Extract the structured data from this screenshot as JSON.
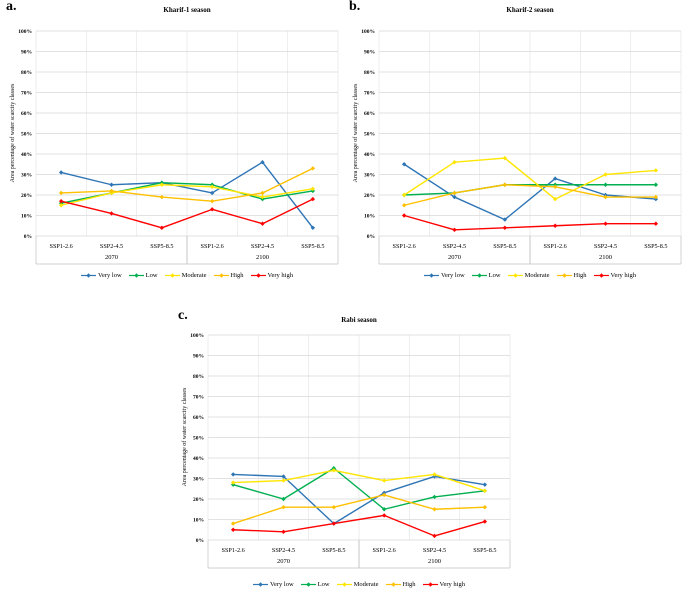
{
  "figure": {
    "background": "#FFFFFF"
  },
  "palette": {
    "very_low": "#2E75B6",
    "low": "#00B050",
    "moderate": "#FFE600",
    "high": "#FFC000",
    "very_high": "#FF0000",
    "gridline_h": "#D9D9D9",
    "gridline_v": "#E7E7E7",
    "axis_line": "#C0C0C0",
    "text": "#000000"
  },
  "chart_data": [
    {
      "panel": "a.",
      "type": "line",
      "title": "Kharif-1 season",
      "ylabel": "Area percentage of water scarcity classes",
      "ylim": [
        0,
        100
      ],
      "ytick_step": 10,
      "yticks": [
        "0%",
        "10%",
        "20%",
        "30%",
        "40%",
        "50%",
        "60%",
        "70%",
        "80%",
        "90%",
        "100%"
      ],
      "categories": [
        "SSP1-2.6",
        "SSP2-4.5",
        "SSP5-8.5",
        "SSP1-2.6",
        "SSP2-4.5",
        "SSP5-8.5"
      ],
      "groups": [
        {
          "label": "2070",
          "span": [
            0,
            2
          ]
        },
        {
          "label": "2100",
          "span": [
            3,
            5
          ]
        }
      ],
      "grid": true,
      "legend_position": "bottom",
      "series": [
        {
          "name": "Very low",
          "color_key": "very_low",
          "values": [
            31,
            25,
            26,
            21,
            36,
            4
          ]
        },
        {
          "name": "Low",
          "color_key": "low",
          "values": [
            16,
            21,
            26,
            25,
            18,
            22
          ]
        },
        {
          "name": "Moderate",
          "color_key": "moderate",
          "values": [
            15,
            21,
            25,
            24,
            19,
            23
          ]
        },
        {
          "name": "High",
          "color_key": "high",
          "values": [
            21,
            22,
            19,
            17,
            21,
            33
          ]
        },
        {
          "name": "Very high",
          "color_key": "very_high",
          "values": [
            17,
            11,
            4,
            13,
            6,
            18
          ]
        }
      ]
    },
    {
      "panel": "b.",
      "type": "line",
      "title": "Kharif-2 season",
      "ylabel": "Area percentage of water scarcity classes",
      "ylim": [
        0,
        100
      ],
      "ytick_step": 10,
      "yticks": [
        "0%",
        "10%",
        "20%",
        "30%",
        "40%",
        "50%",
        "60%",
        "70%",
        "80%",
        "90%",
        "100%"
      ],
      "categories": [
        "SSP1-2.6",
        "SSP2-4.5",
        "SSP5-8.5",
        "SSP1-2.6",
        "SSP2-4.5",
        "SSP5-8.5"
      ],
      "groups": [
        {
          "label": "2070",
          "span": [
            0,
            2
          ]
        },
        {
          "label": "2100",
          "span": [
            3,
            5
          ]
        }
      ],
      "grid": true,
      "legend_position": "bottom",
      "series": [
        {
          "name": "Very low",
          "color_key": "very_low",
          "values": [
            35,
            19,
            8,
            28,
            20,
            18
          ]
        },
        {
          "name": "Low",
          "color_key": "low",
          "values": [
            20,
            21,
            25,
            25,
            25,
            25
          ]
        },
        {
          "name": "Moderate",
          "color_key": "moderate",
          "values": [
            20,
            36,
            38,
            18,
            30,
            32
          ]
        },
        {
          "name": "High",
          "color_key": "high",
          "values": [
            15,
            21,
            25,
            24,
            19,
            19
          ]
        },
        {
          "name": "Very high",
          "color_key": "very_high",
          "values": [
            10,
            3,
            4,
            5,
            6,
            6
          ]
        }
      ]
    },
    {
      "panel": "c.",
      "type": "line",
      "title": "Rabi season",
      "ylabel": "Area percentage of water scarcity classes",
      "ylim": [
        0,
        100
      ],
      "ytick_step": 10,
      "yticks": [
        "0%",
        "10%",
        "20%",
        "30%",
        "40%",
        "50%",
        "60%",
        "70%",
        "80%",
        "90%",
        "100%"
      ],
      "categories": [
        "SSP1-2.6",
        "SSP2-4.5",
        "SSP5-8.5",
        "SSP1-2.6",
        "SSP2-4.5",
        "SSP5-8.5"
      ],
      "groups": [
        {
          "label": "2070",
          "span": [
            0,
            2
          ]
        },
        {
          "label": "2100",
          "span": [
            3,
            5
          ]
        }
      ],
      "grid": true,
      "legend_position": "bottom",
      "series": [
        {
          "name": "Very low",
          "color_key": "very_low",
          "values": [
            32,
            31,
            8,
            23,
            31,
            27
          ]
        },
        {
          "name": "Low",
          "color_key": "low",
          "values": [
            27,
            20,
            35,
            15,
            21,
            24
          ]
        },
        {
          "name": "Moderate",
          "color_key": "moderate",
          "values": [
            28,
            29,
            34,
            29,
            32,
            24
          ]
        },
        {
          "name": "High",
          "color_key": "high",
          "values": [
            8,
            16,
            16,
            22,
            15,
            16
          ]
        },
        {
          "name": "Very high",
          "color_key": "very_high",
          "values": [
            5,
            4,
            8,
            12,
            2,
            9
          ]
        }
      ]
    }
  ]
}
